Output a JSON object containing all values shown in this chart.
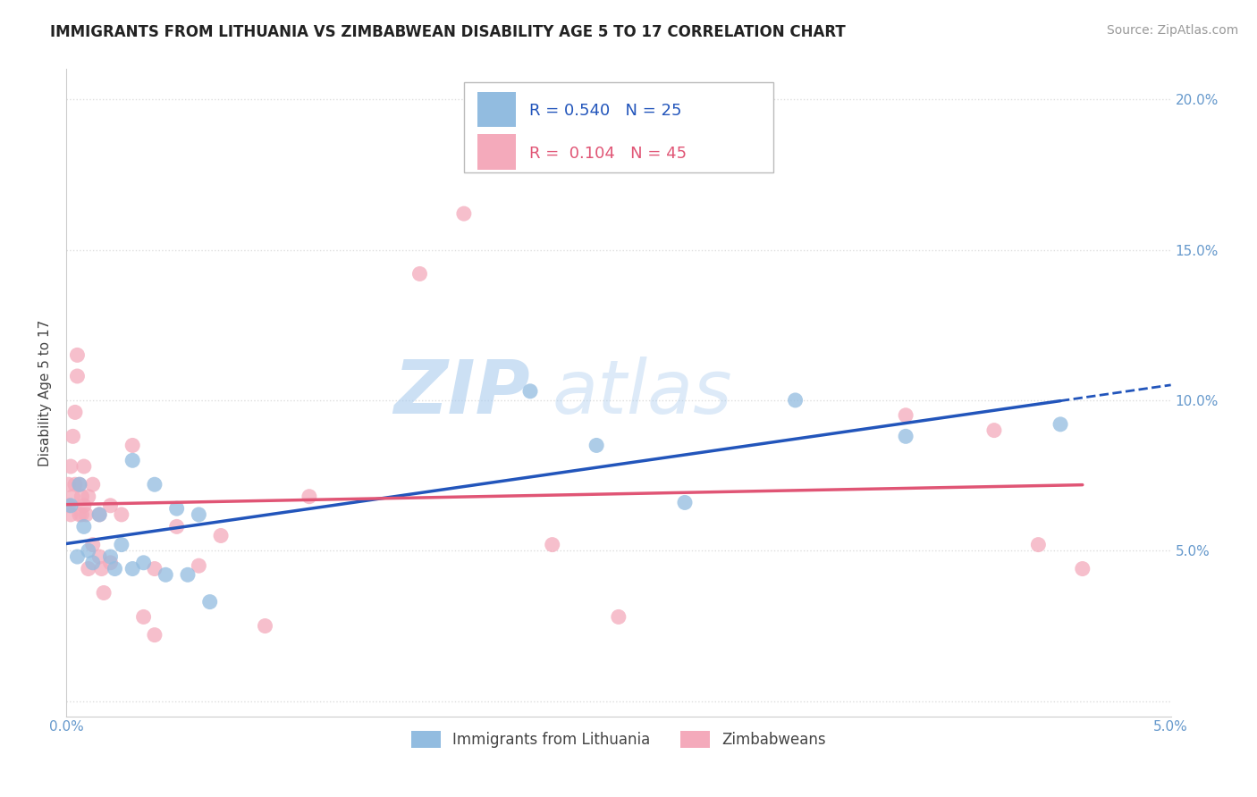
{
  "title": "IMMIGRANTS FROM LITHUANIA VS ZIMBABWEAN DISABILITY AGE 5 TO 17 CORRELATION CHART",
  "source": "Source: ZipAtlas.com",
  "ylabel": "Disability Age 5 to 17",
  "legend_bottom": [
    "Immigrants from Lithuania",
    "Zimbabweans"
  ],
  "r_lithuania": 0.54,
  "n_lithuania": 25,
  "r_zimbabwe": 0.104,
  "n_zimbabwe": 45,
  "xlim": [
    0.0,
    0.05
  ],
  "ylim": [
    -0.005,
    0.21
  ],
  "xticks": [
    0.0,
    0.05
  ],
  "xtick_labels": [
    "0.0%",
    "5.0%"
  ],
  "yticks_right": [
    0.05,
    0.1,
    0.15,
    0.2
  ],
  "ytick_labels_right": [
    "5.0%",
    "10.0%",
    "15.0%",
    "20.0%"
  ],
  "color_lithuania": "#92BCE0",
  "color_zimbabwe": "#F4AABB",
  "trend_color_lithuania": "#2255BB",
  "trend_color_zimbabwe": "#E05575",
  "background_color": "#ffffff",
  "watermark_zip": "ZIP",
  "watermark_atlas": "atlas",
  "tick_color": "#6699CC",
  "grid_color": "#dddddd",
  "title_fontsize": 12,
  "axis_label_fontsize": 11,
  "tick_fontsize": 11,
  "legend_fontsize": 12,
  "watermark_fontsize": 60,
  "source_fontsize": 10,
  "lithuania_x": [
    0.0002,
    0.0005,
    0.0006,
    0.0008,
    0.001,
    0.0012,
    0.0015,
    0.002,
    0.0022,
    0.0025,
    0.003,
    0.003,
    0.0035,
    0.004,
    0.0045,
    0.005,
    0.0055,
    0.006,
    0.0065,
    0.021,
    0.024,
    0.028,
    0.033,
    0.038,
    0.045
  ],
  "lithuania_y": [
    0.065,
    0.048,
    0.072,
    0.058,
    0.05,
    0.046,
    0.062,
    0.048,
    0.044,
    0.052,
    0.044,
    0.08,
    0.046,
    0.072,
    0.042,
    0.064,
    0.042,
    0.062,
    0.033,
    0.103,
    0.085,
    0.066,
    0.1,
    0.088,
    0.092
  ],
  "zimbabwe_x": [
    0.0001,
    0.0001,
    0.0002,
    0.0002,
    0.0003,
    0.0003,
    0.0004,
    0.0004,
    0.0005,
    0.0005,
    0.0006,
    0.0006,
    0.0007,
    0.0007,
    0.0008,
    0.0008,
    0.0009,
    0.001,
    0.001,
    0.0012,
    0.0012,
    0.0015,
    0.0015,
    0.0016,
    0.0017,
    0.002,
    0.002,
    0.0025,
    0.003,
    0.0035,
    0.004,
    0.004,
    0.005,
    0.006,
    0.007,
    0.009,
    0.011,
    0.016,
    0.018,
    0.022,
    0.025,
    0.038,
    0.042,
    0.044,
    0.046
  ],
  "zimbabwe_y": [
    0.065,
    0.072,
    0.062,
    0.078,
    0.068,
    0.088,
    0.072,
    0.096,
    0.115,
    0.108,
    0.072,
    0.062,
    0.068,
    0.062,
    0.078,
    0.065,
    0.062,
    0.068,
    0.044,
    0.072,
    0.052,
    0.062,
    0.048,
    0.044,
    0.036,
    0.065,
    0.046,
    0.062,
    0.085,
    0.028,
    0.022,
    0.044,
    0.058,
    0.045,
    0.055,
    0.025,
    0.068,
    0.142,
    0.162,
    0.052,
    0.028,
    0.095,
    0.09,
    0.052,
    0.044
  ],
  "lith_trend_x0": 0.0,
  "lith_trend_x1": 0.045,
  "lith_trend_x_dash_end": 0.05,
  "zimb_trend_x0": 0.0,
  "zimb_trend_x1": 0.046
}
